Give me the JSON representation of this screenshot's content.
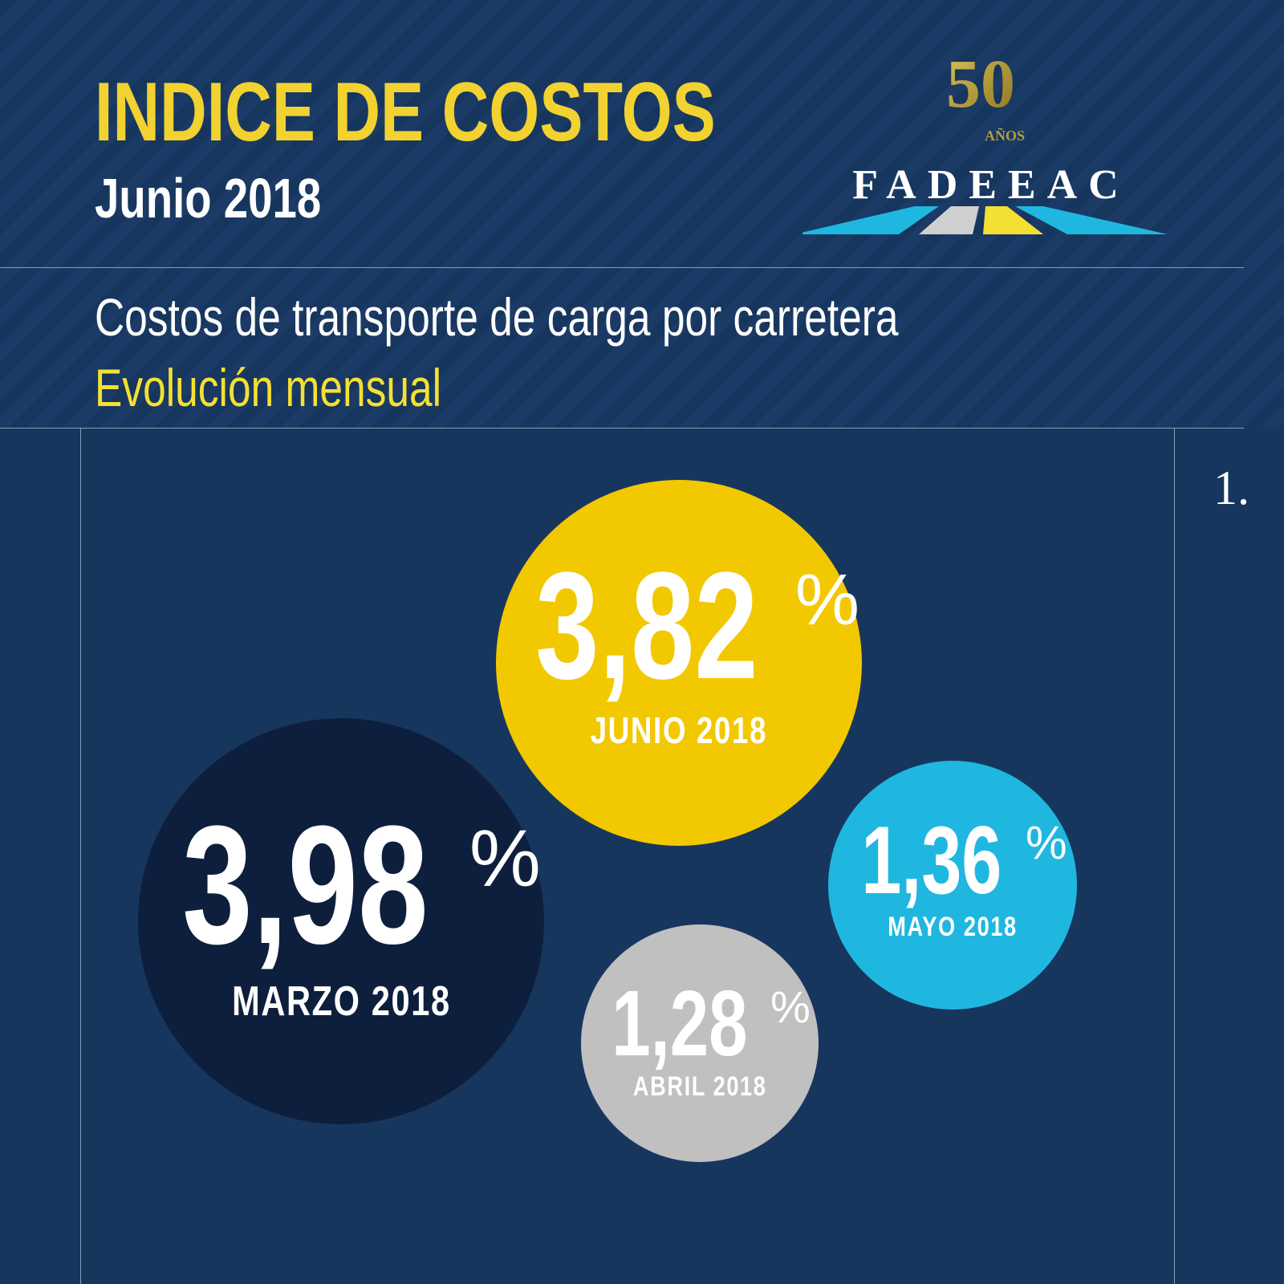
{
  "header": {
    "title": "INDICE DE COSTOS",
    "subtitle": "Junio 2018",
    "description": "Costos de transporte de carga por carretera",
    "description_highlight": "Evolución mensual"
  },
  "logo": {
    "anniversary_number": "50",
    "anniversary_label": "AÑOS",
    "brand": "FADEEAC"
  },
  "side_text": "1.",
  "colors": {
    "background": "#17365e",
    "title": "#f2d230",
    "junio": "#f2c800",
    "marzo": "#0d1f3c",
    "mayo": "#1fb7e0",
    "abril": "#c0c0c0"
  },
  "chart_data": {
    "type": "bubble",
    "unit": "%",
    "categories": [
      "MARZO 2018",
      "ABRIL 2018",
      "MAYO 2018",
      "JUNIO 2018"
    ],
    "values": [
      3.98,
      1.28,
      1.36,
      3.82
    ],
    "labels": {
      "marzo": "3,98",
      "abril": "1,28",
      "mayo": "1,36",
      "junio": "3,82"
    },
    "months": {
      "marzo": "MARZO 2018",
      "abril": "ABRIL 2018",
      "mayo": "MAYO 2018",
      "junio": "JUNIO 2018"
    }
  }
}
